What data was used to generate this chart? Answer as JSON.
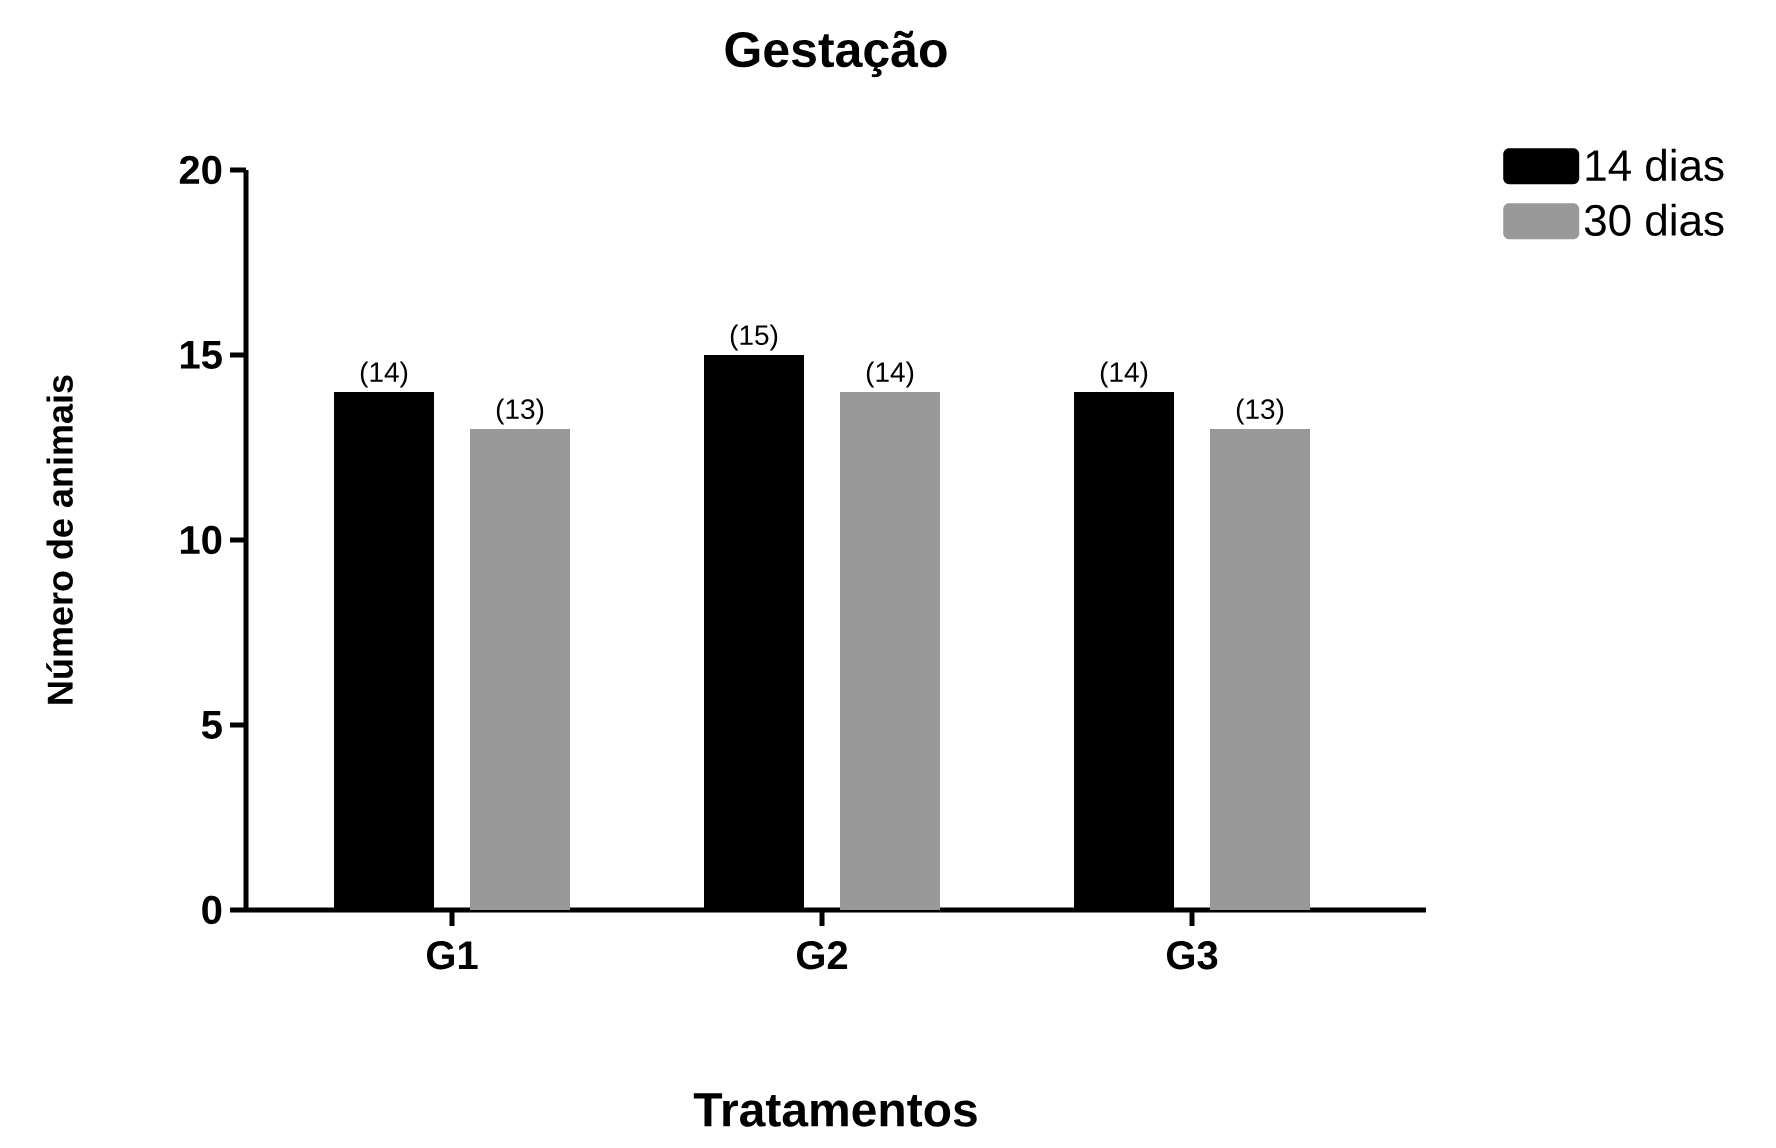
{
  "chart_data": {
    "type": "bar",
    "title": "Gestação",
    "xlabel": "Tratamentos",
    "ylabel": "Número de animais",
    "categories": [
      "G1",
      "G2",
      "G3"
    ],
    "series": [
      {
        "name": "14 dias",
        "color": "#000000",
        "values": [
          14,
          15,
          14
        ],
        "value_labels": [
          "(14)",
          "(15)",
          "(14)"
        ]
      },
      {
        "name": "30 dias",
        "color": "#999999",
        "values": [
          13,
          14,
          13
        ],
        "value_labels": [
          "(13)",
          "(14)",
          "(13)"
        ]
      }
    ],
    "ylim": [
      0,
      20
    ],
    "yticks": [
      0,
      5,
      10,
      15,
      20
    ],
    "legend": "top right"
  }
}
